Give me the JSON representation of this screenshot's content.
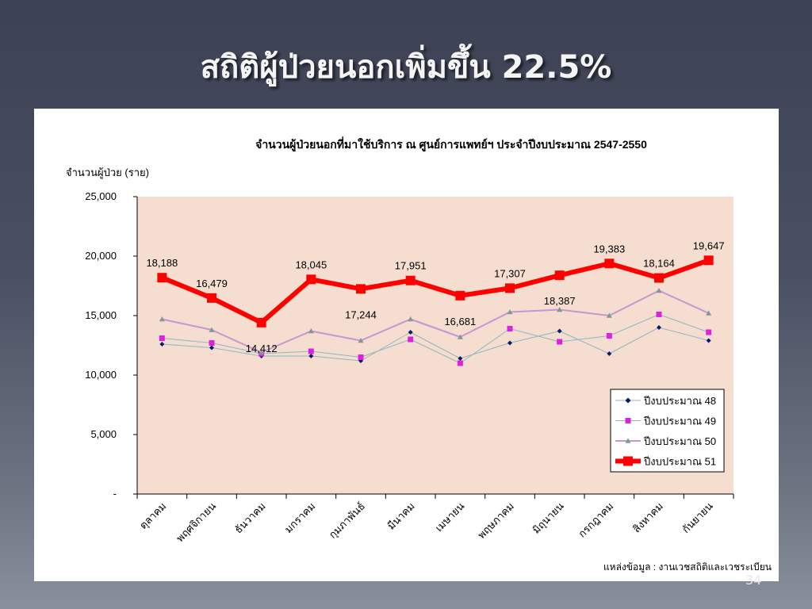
{
  "slide": {
    "title": "สถิติผู้ป่วยนอกเพิ่มขึ้น 22.5%",
    "page_number": "34"
  },
  "chart_data": {
    "type": "line",
    "title": "จำนวนผู้ป่วยนอกที่มาใช้บริการ ณ ศูนย์การแพทย์ฯ ประจำปีงบประมาณ 2547-2550",
    "ylabel": "จำนวนผู้ป่วย (ราย)",
    "xlabel": "",
    "ylim": [
      0,
      25000
    ],
    "yticks": [
      "-",
      "5,000",
      "10,000",
      "15,000",
      "20,000",
      "25,000"
    ],
    "ytick_values": [
      0,
      5000,
      10000,
      15000,
      20000,
      25000
    ],
    "categories": [
      "ตุลาคม",
      "พฤศจิกายน",
      "ธันวาคม",
      "มกราคม",
      "กุมภาพันธ์",
      "มีนาคม",
      "เมษายน",
      "พฤษภาคม",
      "มิถุนายน",
      "กรกฎาคม",
      "สิงหาคม",
      "กันยายน"
    ],
    "source": "แหล่งข้อมูล : งานเวชสถิติและเวชระเบียน",
    "plot_background": "#f5ddd0",
    "legend_position": "right",
    "series": [
      {
        "name": "ปีงบประมาณ 48",
        "color": "#8fb8c0",
        "marker": "diamond",
        "marker_color": "#0a1a6a",
        "values": [
          12600,
          12300,
          11600,
          11600,
          11200,
          13600,
          11400,
          12700,
          13700,
          11800,
          14000,
          12900
        ]
      },
      {
        "name": "ปีงบประมาณ 49",
        "color": "#8fb8c0",
        "marker": "square",
        "marker_color": "#e020e0",
        "values": [
          13100,
          12700,
          11800,
          12000,
          11500,
          13000,
          11000,
          13900,
          12800,
          13300,
          15100,
          13600
        ]
      },
      {
        "name": "ปีงบประมาณ 50",
        "color": "#c596d6",
        "marker": "triangle",
        "marker_color": "#7f9a8f",
        "values": [
          14700,
          13800,
          11900,
          13700,
          12900,
          14700,
          13200,
          15300,
          15500,
          15000,
          17100,
          15200
        ]
      },
      {
        "name": "ปีงบประมาณ 51",
        "color": "#ff0000",
        "marker": "square",
        "marker_color": "#ff0000",
        "values": [
          18188,
          16479,
          14412,
          18045,
          17244,
          17951,
          16681,
          17307,
          18387,
          19383,
          18164,
          19647
        ],
        "labels": [
          "18,188",
          "16,479",
          "14,412",
          "18,045",
          "17,244",
          "17,951",
          "16,681",
          "17,307",
          "18,387",
          "19,383",
          "18,164",
          "19,647"
        ],
        "label_positions": [
          "above",
          "above",
          "below",
          "above",
          "below",
          "above",
          "below",
          "above",
          "below",
          "above",
          "above",
          "above"
        ]
      }
    ]
  }
}
